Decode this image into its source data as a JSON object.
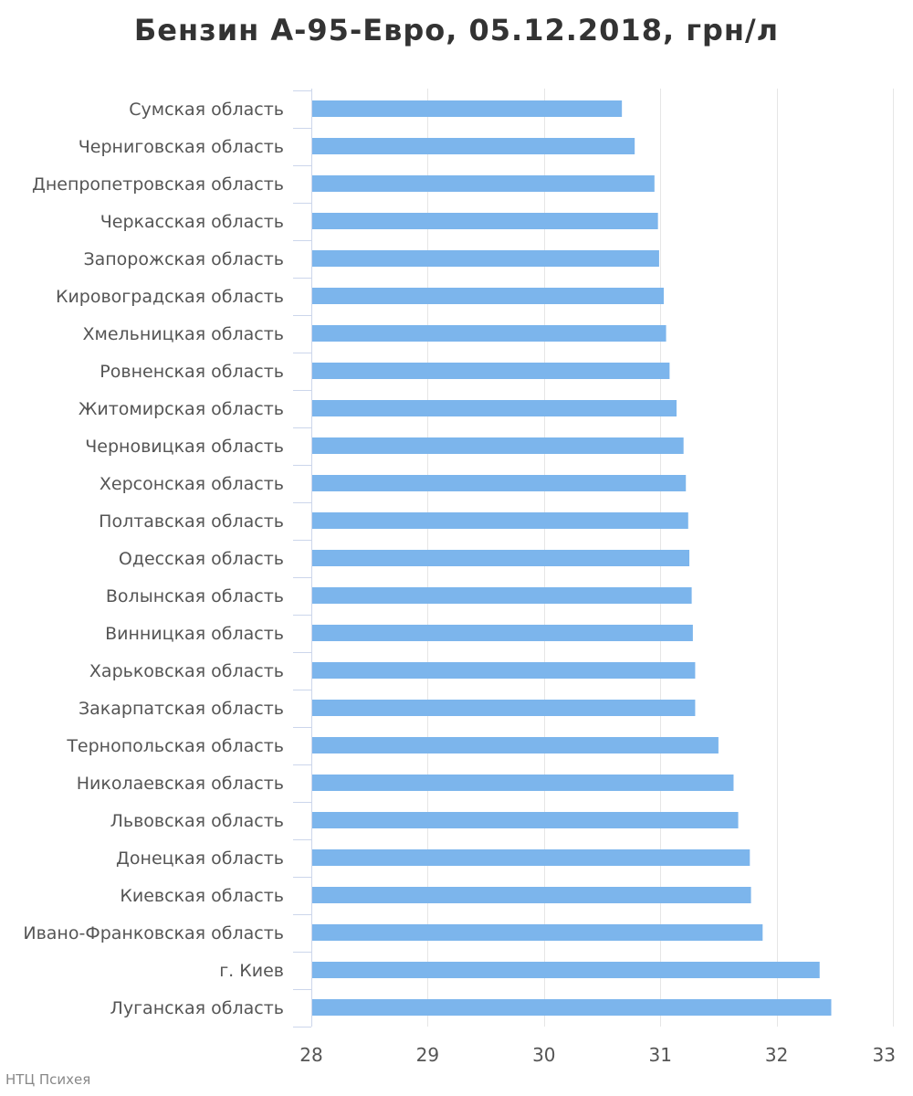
{
  "chart_data": {
    "type": "bar",
    "orientation": "horizontal",
    "title": "Бензин А-95-Евро, 05.12.2018, грн/л",
    "categories": [
      "Сумская область",
      "Черниговская область",
      "Днепропетровская область",
      "Черкасская область",
      "Запорожская область",
      "Кировоградская область",
      "Хмельницкая область",
      "Ровненская область",
      "Житомирская область",
      "Черновицкая область",
      "Херсонская область",
      "Полтавская область",
      "Одесская область",
      "Волынская область",
      "Винницкая область",
      "Харьковская область",
      "Закарпатская область",
      "Тернопольская область",
      "Николаевская область",
      "Львовская область",
      "Донецкая область",
      "Киевская область",
      "Ивано-Франковская область",
      "г. Киев",
      "Луганская область"
    ],
    "values": [
      30.67,
      30.78,
      30.95,
      30.98,
      30.99,
      31.03,
      31.05,
      31.08,
      31.14,
      31.2,
      31.22,
      31.24,
      31.25,
      31.27,
      31.28,
      31.3,
      31.3,
      31.5,
      31.63,
      31.67,
      31.77,
      31.78,
      31.88,
      32.37,
      32.47
    ],
    "xlim": [
      28,
      33
    ],
    "x_ticks": [
      "28",
      "29",
      "30",
      "31",
      "32",
      "33"
    ],
    "grid": true,
    "bar_color": "#7cb5ec"
  },
  "credit": "НТЦ Психея"
}
